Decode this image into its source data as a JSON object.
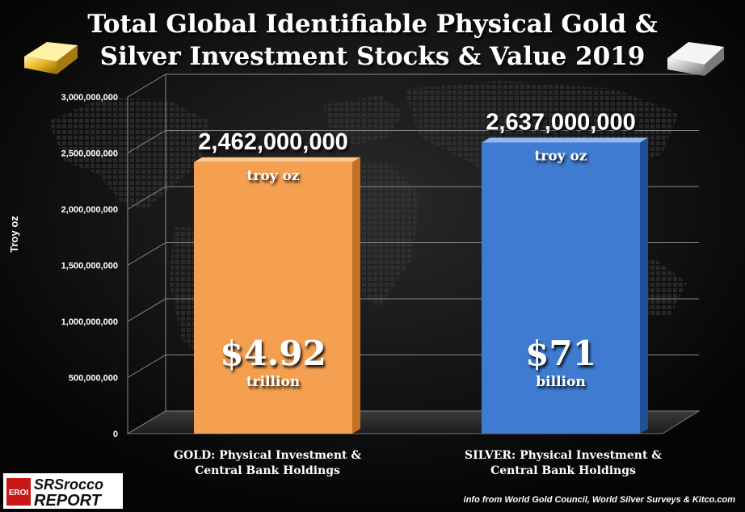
{
  "chart_data": {
    "type": "bar",
    "title_line1": "Total Global Identifiable Physical Gold &",
    "title_line2": "Silver Investment Stocks & Value 2019",
    "ylabel": "Troy oz",
    "ylim": [
      0,
      3000000000
    ],
    "yticks": [
      "0",
      "500,000,000",
      "1,000,000,000",
      "1,500,000,000",
      "2,000,000,000",
      "2,500,000,000",
      "3,000,000,000"
    ],
    "categories": [
      [
        "GOLD: Physical Investment &",
        "Central Bank Holdings"
      ],
      [
        "SILVER: Physical Investment &",
        "Central Bank Holdings"
      ]
    ],
    "values": [
      2462000000,
      2637000000
    ],
    "value_labels": [
      "2,462,000,000",
      "2,637,000,000"
    ],
    "unit_labels": [
      "troy oz",
      "troy oz"
    ],
    "money_labels": [
      "$4.92",
      "$71"
    ],
    "money_units": [
      "trillion",
      "billion"
    ],
    "bar_colors": [
      "#f5a050",
      "#3f7bd0"
    ],
    "source": "info from World Gold Council, World Silver Surveys & Kitco.com"
  },
  "logo": {
    "badge": "EROI",
    "line1": "SRSrocco",
    "line2": "REPORT"
  }
}
